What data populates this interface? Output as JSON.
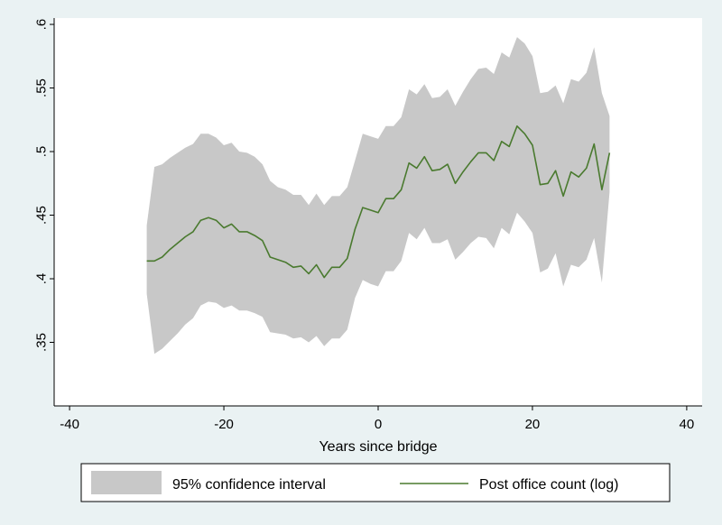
{
  "chart_data": {
    "type": "line",
    "xlabel": "Years since bridge",
    "ylabel": "",
    "xlim": [
      -42,
      42
    ],
    "ylim": [
      0.3,
      0.605
    ],
    "x_ticks": [
      -40,
      -20,
      0,
      20,
      40
    ],
    "x_tick_labels": [
      "-40",
      "-20",
      "0",
      "20",
      "40"
    ],
    "y_ticks": [
      0.35,
      0.4,
      0.45,
      0.5,
      0.55,
      0.6
    ],
    "y_tick_labels": [
      ".35",
      ".4",
      ".45",
      ".5",
      ".55",
      ".6"
    ],
    "grid": false,
    "legend_position": "bottom",
    "x": [
      -30,
      -29,
      -28,
      -27,
      -26,
      -25,
      -24,
      -23,
      -22,
      -21,
      -20,
      -19,
      -18,
      -17,
      -16,
      -15,
      -14,
      -13,
      -12,
      -11,
      -10,
      -9,
      -8,
      -7,
      -6,
      -5,
      -4,
      -3,
      -2,
      -1,
      0,
      1,
      2,
      3,
      4,
      5,
      6,
      7,
      8,
      9,
      10,
      11,
      12,
      13,
      14,
      15,
      16,
      17,
      18,
      19,
      20,
      21,
      22,
      23,
      24,
      25,
      26,
      27,
      28,
      29,
      30
    ],
    "series": [
      {
        "name": "95% confidence interval",
        "kind": "band",
        "color": "#c8c8c8",
        "lower": [
          0.388,
          0.341,
          0.345,
          0.351,
          0.357,
          0.364,
          0.369,
          0.379,
          0.382,
          0.381,
          0.377,
          0.379,
          0.375,
          0.375,
          0.373,
          0.37,
          0.358,
          0.357,
          0.356,
          0.353,
          0.354,
          0.35,
          0.355,
          0.347,
          0.353,
          0.353,
          0.36,
          0.385,
          0.399,
          0.396,
          0.394,
          0.406,
          0.406,
          0.414,
          0.436,
          0.431,
          0.44,
          0.428,
          0.428,
          0.431,
          0.415,
          0.421,
          0.428,
          0.433,
          0.432,
          0.424,
          0.44,
          0.435,
          0.452,
          0.445,
          0.436,
          0.405,
          0.408,
          0.42,
          0.394,
          0.411,
          0.409,
          0.415,
          0.432,
          0.397,
          0.468
        ],
        "upper": [
          0.442,
          0.488,
          0.49,
          0.495,
          0.499,
          0.503,
          0.506,
          0.514,
          0.514,
          0.511,
          0.505,
          0.507,
          0.5,
          0.499,
          0.496,
          0.49,
          0.477,
          0.472,
          0.47,
          0.466,
          0.466,
          0.458,
          0.467,
          0.458,
          0.465,
          0.465,
          0.472,
          0.493,
          0.514,
          0.512,
          0.51,
          0.52,
          0.52,
          0.527,
          0.549,
          0.545,
          0.553,
          0.542,
          0.543,
          0.549,
          0.536,
          0.547,
          0.557,
          0.565,
          0.566,
          0.561,
          0.578,
          0.574,
          0.59,
          0.585,
          0.575,
          0.546,
          0.547,
          0.552,
          0.538,
          0.557,
          0.555,
          0.562,
          0.582,
          0.546,
          0.528
        ]
      },
      {
        "name": "Post office count (log)",
        "kind": "line",
        "color": "#4a7a2f",
        "values": [
          0.414,
          0.414,
          0.417,
          0.423,
          0.428,
          0.433,
          0.437,
          0.446,
          0.448,
          0.446,
          0.44,
          0.443,
          0.437,
          0.437,
          0.434,
          0.43,
          0.417,
          0.415,
          0.413,
          0.409,
          0.41,
          0.404,
          0.411,
          0.401,
          0.409,
          0.409,
          0.416,
          0.439,
          0.456,
          0.454,
          0.452,
          0.463,
          0.463,
          0.47,
          0.491,
          0.487,
          0.496,
          0.485,
          0.486,
          0.49,
          0.475,
          0.484,
          0.492,
          0.499,
          0.499,
          0.493,
          0.508,
          0.504,
          0.52,
          0.514,
          0.505,
          0.474,
          0.475,
          0.485,
          0.465,
          0.484,
          0.48,
          0.487,
          0.506,
          0.47,
          0.499
        ]
      }
    ]
  }
}
